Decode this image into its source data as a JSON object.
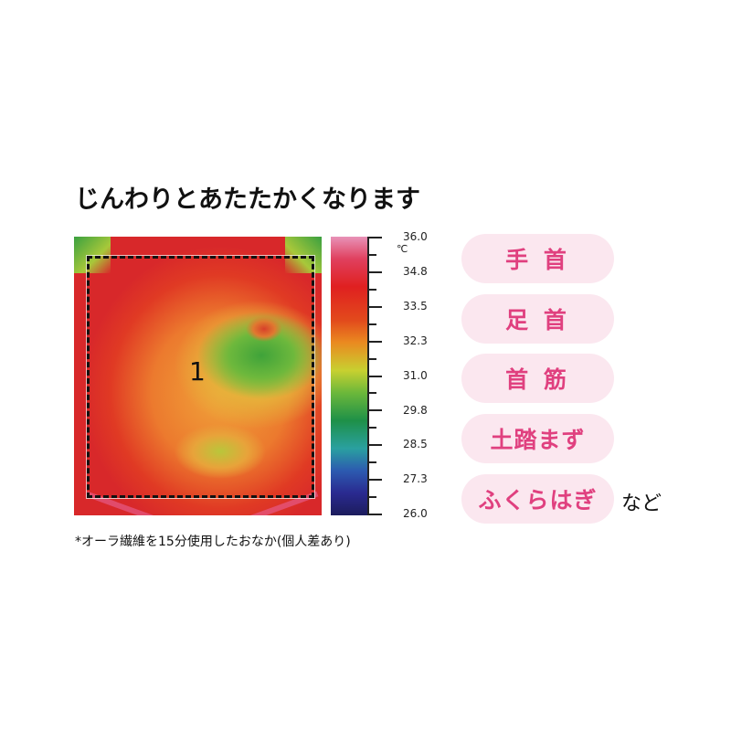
{
  "title": "じんわりとあたたかくなります",
  "thermal_image": {
    "region_label": "1"
  },
  "scale": {
    "unit": "℃",
    "ticks": [
      "36.0",
      "34.8",
      "33.5",
      "32.3",
      "31.0",
      "29.8",
      "28.5",
      "27.3",
      "26.0"
    ],
    "colors": [
      "#e892b8",
      "#e02020",
      "#ea8a20",
      "#c8d030",
      "#1e9048",
      "#2aa0a0",
      "#2a2a90",
      "#1c1c5c"
    ]
  },
  "note": "*オーラ繊維を15分使用したおなか(個人差あり)",
  "body_parts": [
    "手 首",
    "足 首",
    "首 筋",
    "土踏まず",
    "ふくらはぎ"
  ],
  "suffix": "など",
  "accent": "#e0407f"
}
